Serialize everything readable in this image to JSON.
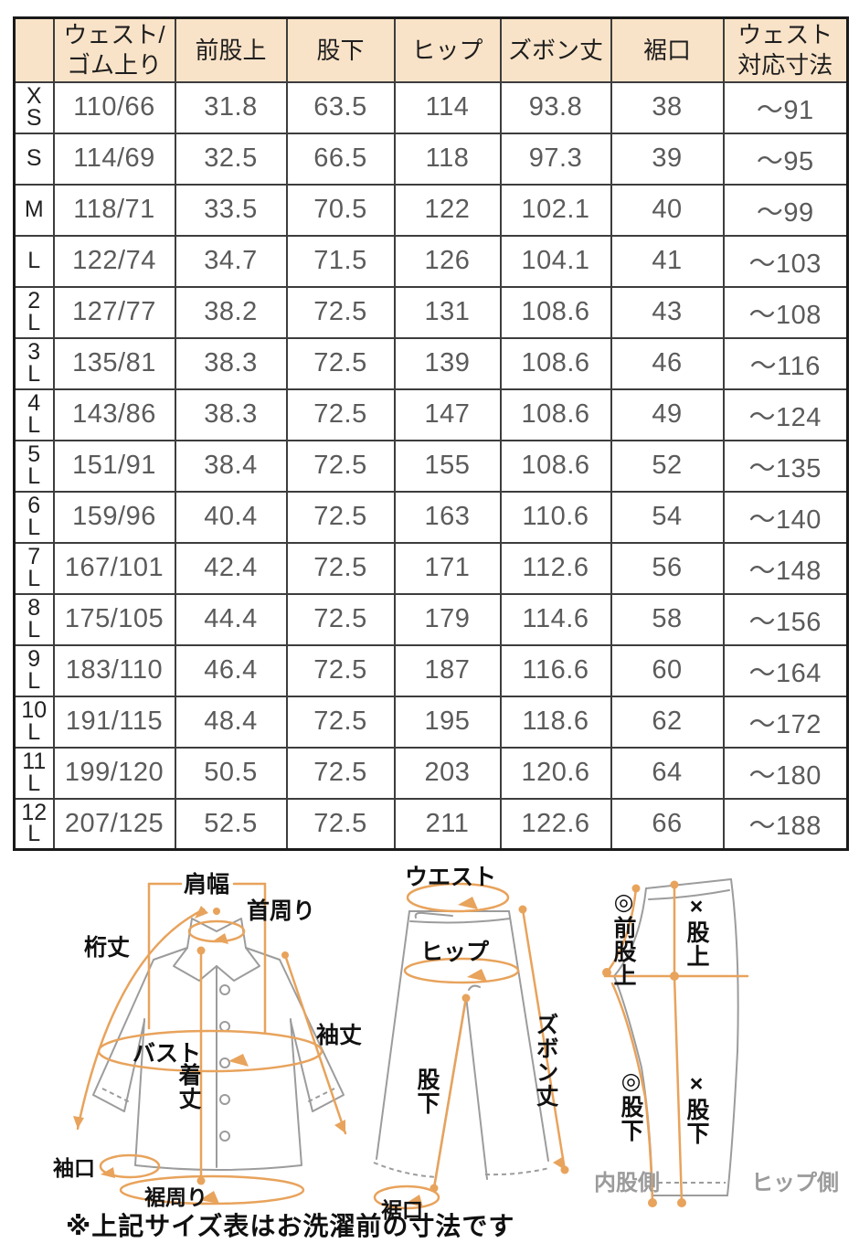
{
  "table": {
    "columns": [
      "",
      "ウェスト/\nゴム上り",
      "前股上",
      "股下",
      "ヒップ",
      "ズボン丈",
      "裾口",
      "ウェスト\n対応寸法"
    ],
    "rows": [
      {
        "size": "X\nS",
        "cells": [
          "110/66",
          "31.8",
          "63.5",
          "114",
          "93.8",
          "38",
          "〜91"
        ]
      },
      {
        "size": "S",
        "cells": [
          "114/69",
          "32.5",
          "66.5",
          "118",
          "97.3",
          "39",
          "〜95"
        ]
      },
      {
        "size": "M",
        "cells": [
          "118/71",
          "33.5",
          "70.5",
          "122",
          "102.1",
          "40",
          "〜99"
        ]
      },
      {
        "size": "L",
        "cells": [
          "122/74",
          "34.7",
          "71.5",
          "126",
          "104.1",
          "41",
          "〜103"
        ]
      },
      {
        "size": "2\nL",
        "cells": [
          "127/77",
          "38.2",
          "72.5",
          "131",
          "108.6",
          "43",
          "〜108"
        ]
      },
      {
        "size": "3\nL",
        "cells": [
          "135/81",
          "38.3",
          "72.5",
          "139",
          "108.6",
          "46",
          "〜116"
        ]
      },
      {
        "size": "4\nL",
        "cells": [
          "143/86",
          "38.3",
          "72.5",
          "147",
          "108.6",
          "49",
          "〜124"
        ]
      },
      {
        "size": "5\nL",
        "cells": [
          "151/91",
          "38.4",
          "72.5",
          "155",
          "108.6",
          "52",
          "〜135"
        ]
      },
      {
        "size": "6\nL",
        "cells": [
          "159/96",
          "40.4",
          "72.5",
          "163",
          "110.6",
          "54",
          "〜140"
        ]
      },
      {
        "size": "7\nL",
        "cells": [
          "167/101",
          "42.4",
          "72.5",
          "171",
          "112.6",
          "56",
          "〜148"
        ]
      },
      {
        "size": "8\nL",
        "cells": [
          "175/105",
          "44.4",
          "72.5",
          "179",
          "114.6",
          "58",
          "〜156"
        ]
      },
      {
        "size": "9\nL",
        "cells": [
          "183/110",
          "46.4",
          "72.5",
          "187",
          "116.6",
          "60",
          "〜164"
        ]
      },
      {
        "size": "10\nL",
        "cells": [
          "191/115",
          "48.4",
          "72.5",
          "195",
          "118.6",
          "62",
          "〜172"
        ]
      },
      {
        "size": "11\nL",
        "cells": [
          "199/120",
          "50.5",
          "72.5",
          "203",
          "120.6",
          "64",
          "〜180"
        ]
      },
      {
        "size": "12\nL",
        "cells": [
          "207/125",
          "52.5",
          "72.5",
          "211",
          "122.6",
          "66",
          "〜188"
        ]
      }
    ]
  },
  "diagrams": {
    "shirt": {
      "labels": {
        "shoulder": "肩幅",
        "neck": "首周り",
        "yuki": "桁丈",
        "bust": "バスト",
        "sleeve": "袖丈",
        "length": "着丈",
        "cuff": "袖口",
        "hem": "裾周り"
      }
    },
    "pants_front": {
      "labels": {
        "waist": "ウエスト",
        "hip": "ヒップ",
        "length": "ズボン丈",
        "inseam": "股下",
        "hem": "裾口"
      }
    },
    "pants_side": {
      "labels": {
        "front_rise": "◎前股上",
        "rise": "×股上",
        "inseam_a": "◎股下",
        "inseam_b": "×股下",
        "inner_side": "内股側",
        "hip_side": "ヒップ側"
      }
    }
  },
  "note": "※上記サイズ表はお洗濯前の寸法です",
  "colors": {
    "header_bg": "#F9E3C8",
    "accent_orange": "#E8A35C",
    "garment_gray": "#9C9C9C",
    "number_text": "#5B5B5B"
  }
}
